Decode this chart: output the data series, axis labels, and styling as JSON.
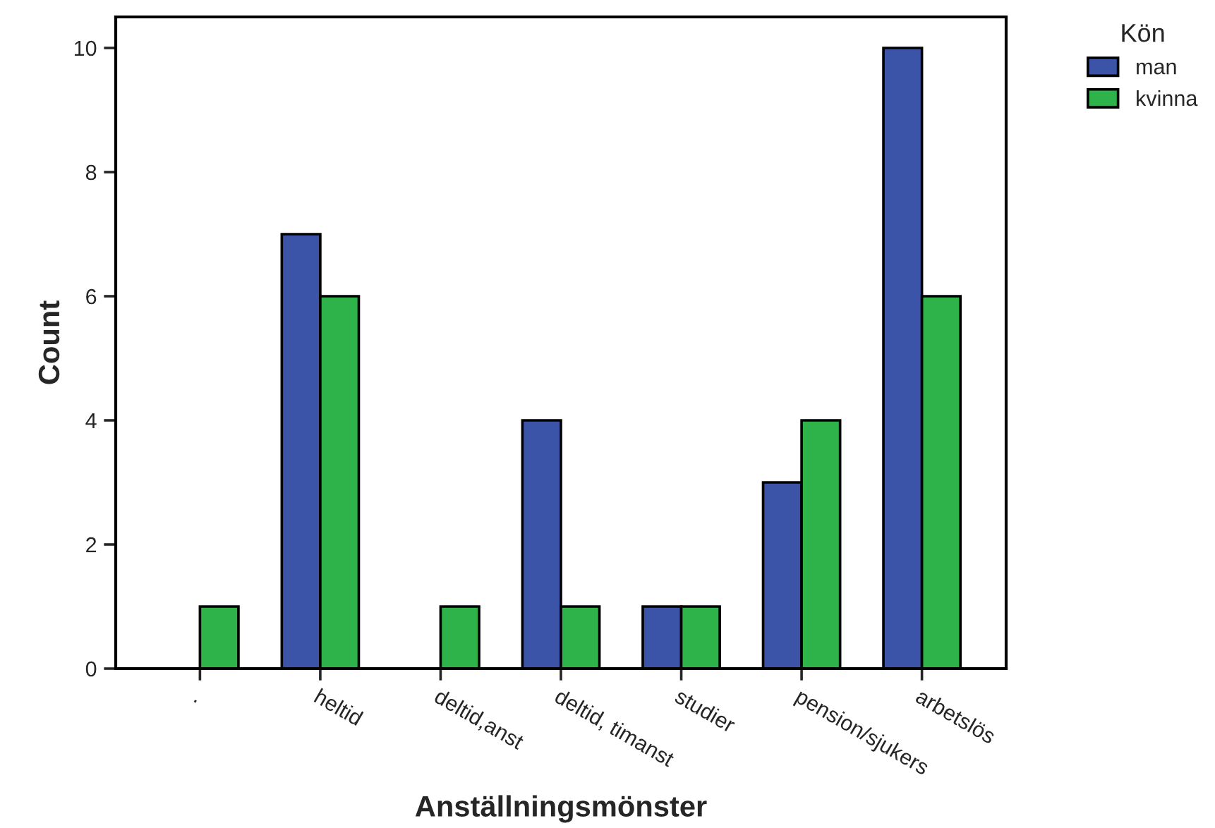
{
  "chart_data": {
    "type": "bar",
    "xlabel": "Anställningsmönster",
    "ylabel": "Count",
    "legend_title": "Kön",
    "categories": [
      ".",
      "heltid",
      "deltid,anst",
      "deltid, timanst",
      "studier",
      "pension/sjukers",
      "arbetslös"
    ],
    "series": [
      {
        "name": "man",
        "color": "#3b54a8",
        "values": [
          null,
          7,
          null,
          4,
          1,
          3,
          10
        ]
      },
      {
        "name": "kvinna",
        "color": "#2eb34a",
        "values": [
          1,
          6,
          1,
          1,
          1,
          4,
          6
        ]
      }
    ],
    "ylim": [
      0,
      10.5
    ],
    "yticks": [
      0,
      2,
      4,
      6,
      8,
      10
    ],
    "grid": false,
    "legend": "top right"
  }
}
